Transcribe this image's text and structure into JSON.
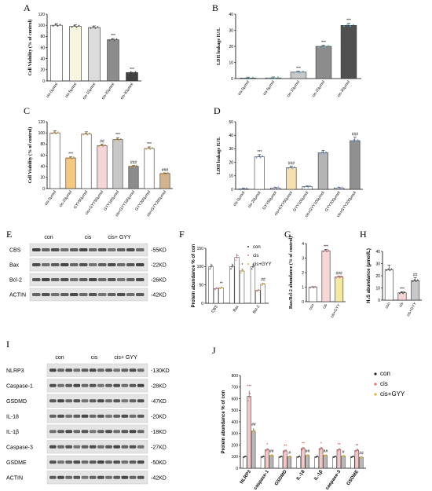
{
  "panels": [
    "A",
    "B",
    "C",
    "D",
    "E",
    "F",
    "G",
    "H",
    "I",
    "J"
  ],
  "A": {
    "ylabel": "Cell Viability (% of control)",
    "categories": [
      "cis-0μmol",
      "cis-5μmol",
      "cis-10μmol",
      "cis-20μmol",
      "cis-30μmol"
    ],
    "values": [
      100,
      98,
      96,
      74,
      15
    ],
    "colors": [
      "#ffffff",
      "#f5f5e0",
      "#dcdcdc",
      "#8c8c8c",
      "#404040"
    ],
    "sig": [
      "",
      "",
      "",
      "***",
      "***"
    ],
    "ylim": [
      0,
      120
    ],
    "yticks": [
      "0",
      "20",
      "40",
      "60",
      "80",
      "100",
      "120"
    ]
  },
  "B": {
    "ylabel": "LDH leakage IU/L",
    "categories": [
      "cis-0μmol",
      "cis-5μmol",
      "cis-10μmol",
      "cis-20μmol",
      "cis-30μmol"
    ],
    "values": [
      0.3,
      0.4,
      4,
      20,
      33
    ],
    "colors": [
      "#ffffff",
      "#f5f5e0",
      "#c8c8c8",
      "#8c8c8c",
      "#505050"
    ],
    "sig": [
      "",
      "",
      "***",
      "***",
      "***"
    ],
    "ylim": [
      0,
      40
    ],
    "yticks": [
      "0",
      "10",
      "20",
      "30",
      "40"
    ]
  },
  "C": {
    "ylabel": "Cell Viability (% of control)",
    "categories": [
      "cis-0μmol",
      "cis-20μmol",
      "GYY50μmol",
      "cis+GYY50μmol",
      "GYY100μmol",
      "cis+GYY100μmol",
      "GYY200μmol",
      "cis+GYY200μmol"
    ],
    "values": [
      100,
      55,
      98,
      77,
      88,
      40,
      72,
      27
    ],
    "colors": [
      "#ffffff",
      "#f5c880",
      "#ffffff",
      "#f5d5d5",
      "#c8c8c8",
      "#8c8c8c",
      "#ffffff",
      "#d2b48c"
    ],
    "sig": [
      "",
      "***",
      "",
      "##",
      "***",
      "###",
      "***",
      "###"
    ],
    "ylim": [
      0,
      120
    ],
    "yticks": [
      "0",
      "20",
      "40",
      "60",
      "80",
      "100",
      "120"
    ]
  },
  "D": {
    "ylabel": "LDH leakage IU/L",
    "categories": [
      "cis-0μmol",
      "cis-20μmol",
      "GYY50μmol",
      "cis+GYY50μmol",
      "GYY100μmol",
      "cis+GYY100μmol",
      "GYY200μmol",
      "cis+GYY200μmol"
    ],
    "values": [
      0.3,
      24,
      1,
      16,
      2,
      27,
      1,
      36
    ],
    "colors": [
      "#ffffff",
      "#ffffff",
      "#ffffff",
      "#f5e0b0",
      "#ffffff",
      "#b4b4b4",
      "#ffffff",
      "#909090"
    ],
    "sig": [
      "",
      "***",
      "",
      "###",
      "",
      "",
      "",
      "###"
    ],
    "ylim": [
      0,
      50
    ],
    "yticks": [
      "0",
      "10",
      "20",
      "30",
      "40",
      "50"
    ]
  },
  "E": {
    "groups": [
      "con",
      "cis",
      "cis+ GYY"
    ],
    "rows": [
      "CBS",
      "Bax",
      "Bcl-2",
      "ACTIN"
    ],
    "sizes": [
      "-55KD",
      "-22KD",
      "-26KD",
      "-42KD"
    ]
  },
  "F": {
    "ylabel": "Protein abundance % of con",
    "categories": [
      "CBS",
      "Bax",
      "Bcl-2"
    ],
    "legend": [
      "con",
      "cis",
      "cis+GYY"
    ],
    "series": [
      {
        "name": "con",
        "values": [
          100,
          100,
          100
        ]
      },
      {
        "name": "cis",
        "values": [
          40,
          125,
          35
        ]
      },
      {
        "name": "cis+GYY",
        "values": [
          42,
          88,
          52
        ]
      }
    ],
    "sig": [
      "**",
      "*",
      "##"
    ],
    "ylim": [
      0,
      150
    ],
    "yticks": [
      "0",
      "50",
      "100",
      "150"
    ]
  },
  "G": {
    "ylabel": "Bax/Bcl-2 abundance (% of control)",
    "categories": [
      "con",
      "cis",
      "cis+GYY"
    ],
    "values": [
      1.0,
      3.5,
      1.7
    ],
    "colors": [
      "#ffffff",
      "#f7d6d6",
      "#f5e8a0"
    ],
    "sig": [
      "",
      "***",
      "###"
    ],
    "ylim": [
      0,
      4
    ],
    "yticks": [
      "0",
      "1",
      "2",
      "3",
      "4"
    ]
  },
  "H": {
    "ylabel": "H₂S abundance (μmol/L)",
    "categories": [
      "con",
      "cis",
      "cis+GYY"
    ],
    "values": [
      25,
      6,
      16
    ],
    "colors": [
      "#ffffff",
      "#f7d6d6",
      "#c8c8c8"
    ],
    "sig": [
      "",
      "***",
      "##"
    ],
    "ylim": [
      0,
      40
    ],
    "yticks": [
      "0",
      "10",
      "20",
      "30",
      "40"
    ]
  },
  "I": {
    "groups": [
      "con",
      "cis",
      "cis+ GYY"
    ],
    "rows": [
      "NLRP3",
      "Caspase-1",
      "GSDMD",
      "IL-18",
      "IL-1β",
      "Caspase-3",
      "GSDME",
      "ACTIN"
    ],
    "sizes": [
      "-130KD",
      "-28KD",
      "-47KD",
      "-20KD",
      "-18KD",
      "-27KD",
      "-50KD",
      "-42KD"
    ]
  },
  "J": {
    "ylabel": "Protein abundance % of con",
    "categories": [
      "NLRP3",
      "caspase-1",
      "GSDMD",
      "IL-18",
      "IL-1β",
      "caspase-3",
      "GSDME"
    ],
    "legend": [
      "con",
      "cis",
      "cis+GYY"
    ],
    "series": [
      {
        "name": "con",
        "values": [
          100,
          100,
          100,
          100,
          100,
          100,
          100
        ]
      },
      {
        "name": "cis",
        "values": [
          620,
          160,
          150,
          170,
          170,
          160,
          155
        ]
      },
      {
        "name": "cis+GYY",
        "values": [
          320,
          110,
          100,
          110,
          110,
          105,
          95
        ]
      }
    ],
    "sig_cis": [
      "***",
      "*",
      "**",
      "**",
      "*",
      "**",
      "**"
    ],
    "sig_gyy": [
      "##",
      "##",
      "#",
      "##",
      "##",
      "#",
      "##"
    ],
    "ylim": [
      0,
      800
    ],
    "yticks": [
      "0",
      "100",
      "200",
      "300",
      "400",
      "500",
      "600",
      "700",
      "800"
    ]
  },
  "chart_data": [
    {
      "panel": "A",
      "type": "bar",
      "categories": [
        "cis-0μmol",
        "cis-5μmol",
        "cis-10μmol",
        "cis-20μmol",
        "cis-30μmol"
      ],
      "values": [
        100,
        98,
        96,
        74,
        15
      ],
      "ylabel": "Cell Viability (% of control)",
      "ylim": [
        0,
        120
      ]
    },
    {
      "panel": "B",
      "type": "bar",
      "categories": [
        "cis-0μmol",
        "cis-5μmol",
        "cis-10μmol",
        "cis-20μmol",
        "cis-30μmol"
      ],
      "values": [
        0.3,
        0.4,
        4,
        20,
        33
      ],
      "ylabel": "LDH leakage IU/L",
      "ylim": [
        0,
        40
      ]
    },
    {
      "panel": "C",
      "type": "bar",
      "categories": [
        "cis-0μmol",
        "cis-20μmol",
        "GYY50μmol",
        "cis+GYY50μmol",
        "GYY100μmol",
        "cis+GYY100μmol",
        "GYY200μmol",
        "cis+GYY200μmol"
      ],
      "values": [
        100,
        55,
        98,
        77,
        88,
        40,
        72,
        27
      ],
      "ylabel": "Cell Viability (% of control)",
      "ylim": [
        0,
        120
      ]
    },
    {
      "panel": "D",
      "type": "bar",
      "categories": [
        "cis-0μmol",
        "cis-20μmol",
        "GYY50μmol",
        "cis+GYY50μmol",
        "GYY100μmol",
        "cis+GYY100μmol",
        "GYY200μmol",
        "cis+GYY200μmol"
      ],
      "values": [
        0.3,
        24,
        1,
        16,
        2,
        27,
        1,
        36
      ],
      "ylabel": "LDH leakage IU/L",
      "ylim": [
        0,
        50
      ]
    },
    {
      "panel": "F",
      "type": "bar",
      "categories": [
        "CBS",
        "Bax",
        "Bcl-2"
      ],
      "series": [
        {
          "name": "con",
          "values": [
            100,
            100,
            100
          ]
        },
        {
          "name": "cis",
          "values": [
            40,
            125,
            35
          ]
        },
        {
          "name": "cis+GYY",
          "values": [
            42,
            88,
            52
          ]
        }
      ],
      "ylabel": "Protein abundance % of con",
      "ylim": [
        0,
        150
      ]
    },
    {
      "panel": "G",
      "type": "bar",
      "categories": [
        "con",
        "cis",
        "cis+GYY"
      ],
      "values": [
        1.0,
        3.5,
        1.7
      ],
      "ylabel": "Bax/Bcl-2 abundance (% of control)",
      "ylim": [
        0,
        4
      ]
    },
    {
      "panel": "H",
      "type": "bar",
      "categories": [
        "con",
        "cis",
        "cis+GYY"
      ],
      "values": [
        25,
        6,
        16
      ],
      "ylabel": "H₂S abundance (μmol/L)",
      "ylim": [
        0,
        40
      ]
    },
    {
      "panel": "J",
      "type": "bar",
      "categories": [
        "NLRP3",
        "caspase-1",
        "GSDMD",
        "IL-18",
        "IL-1β",
        "caspase-3",
        "GSDME"
      ],
      "series": [
        {
          "name": "con",
          "values": [
            100,
            100,
            100,
            100,
            100,
            100,
            100
          ]
        },
        {
          "name": "cis",
          "values": [
            620,
            160,
            150,
            170,
            170,
            160,
            155
          ]
        },
        {
          "name": "cis+GYY",
          "values": [
            320,
            110,
            100,
            110,
            110,
            105,
            95
          ]
        }
      ],
      "ylabel": "Protein abundance % of con",
      "ylim": [
        0,
        800
      ]
    }
  ]
}
